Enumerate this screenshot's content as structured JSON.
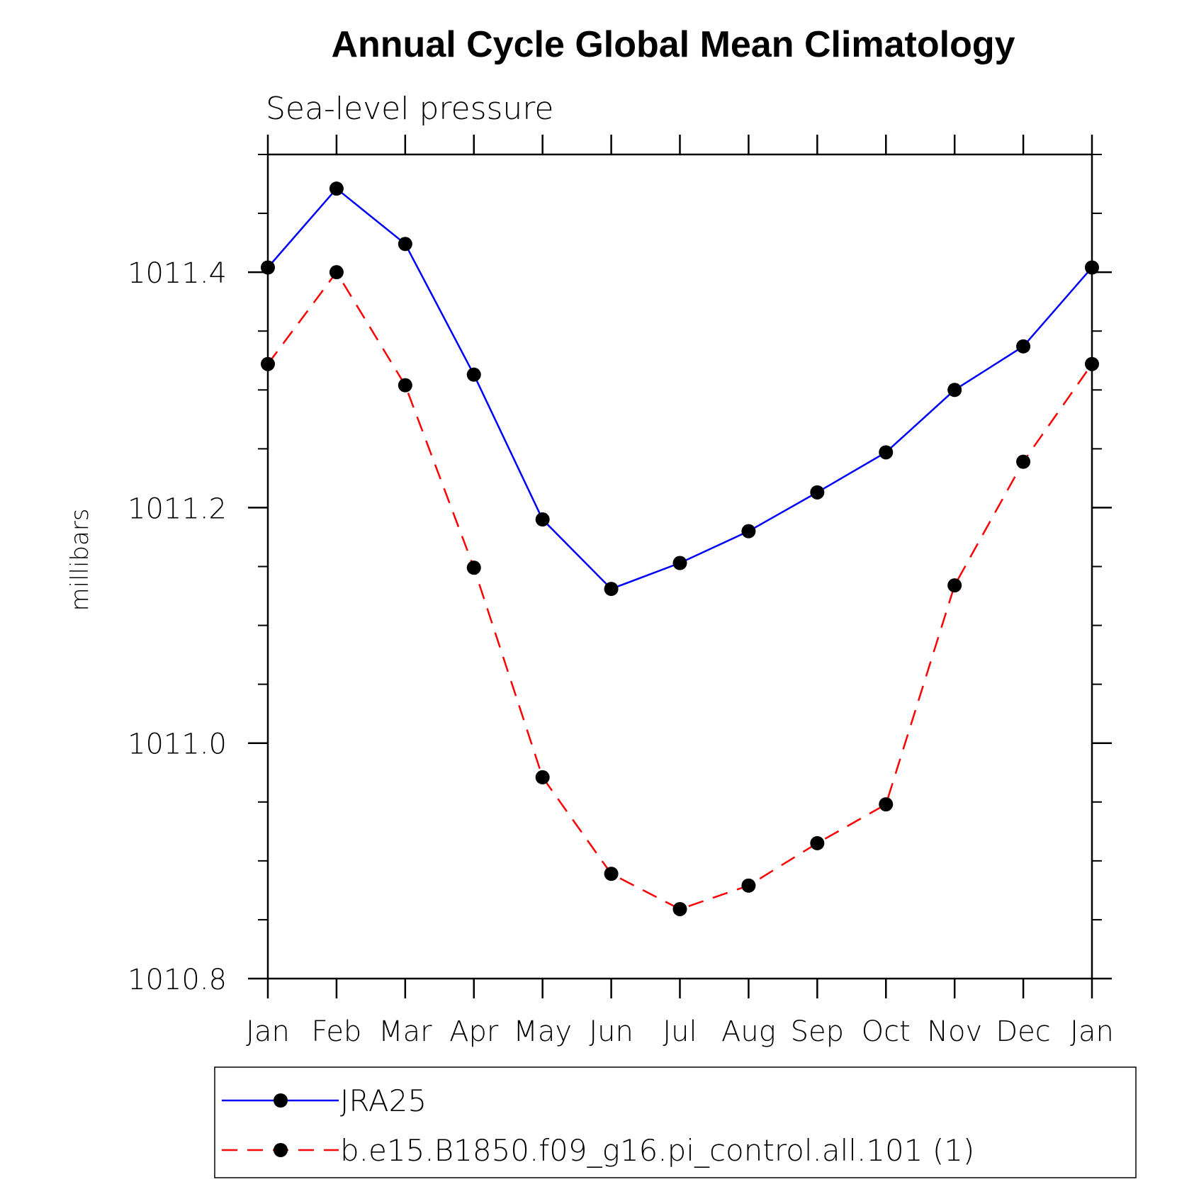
{
  "chart_data": {
    "type": "line",
    "title": "Annual Cycle Global Mean Climatology",
    "subtitle": "Sea-level pressure",
    "ylabel": "millibars",
    "xlabel": "",
    "categories": [
      "Jan",
      "Feb",
      "Mar",
      "Apr",
      "May",
      "Jun",
      "Jul",
      "Aug",
      "Sep",
      "Oct",
      "Nov",
      "Dec",
      "Jan"
    ],
    "ylim": [
      1010.8,
      1011.5
    ],
    "yticks": [
      1010.8,
      1011.0,
      1011.2,
      1011.4
    ],
    "ytick_labels": [
      "1010.8",
      "1011.0",
      "1011.2",
      "1011.4"
    ],
    "yminor_step": 0.05,
    "series": [
      {
        "name": "JRA25",
        "color": "#0000ff",
        "dash": "solid",
        "marker": "circle",
        "values": [
          1011.404,
          1011.471,
          1011.424,
          1011.313,
          1011.19,
          1011.131,
          1011.153,
          1011.18,
          1011.213,
          1011.247,
          1011.3,
          1011.337,
          1011.404
        ]
      },
      {
        "name": "b.e15.B1850.f09_g16.pi_control.all.101 (1)",
        "color": "#ff0000",
        "dash": "dashed",
        "marker": "circle",
        "values": [
          1011.322,
          1011.4,
          1011.304,
          1011.149,
          1010.971,
          1010.889,
          1010.859,
          1010.879,
          1010.915,
          1010.948,
          1011.134,
          1011.239,
          1011.322
        ]
      }
    ],
    "legend_position": "bottom",
    "grid": false
  }
}
